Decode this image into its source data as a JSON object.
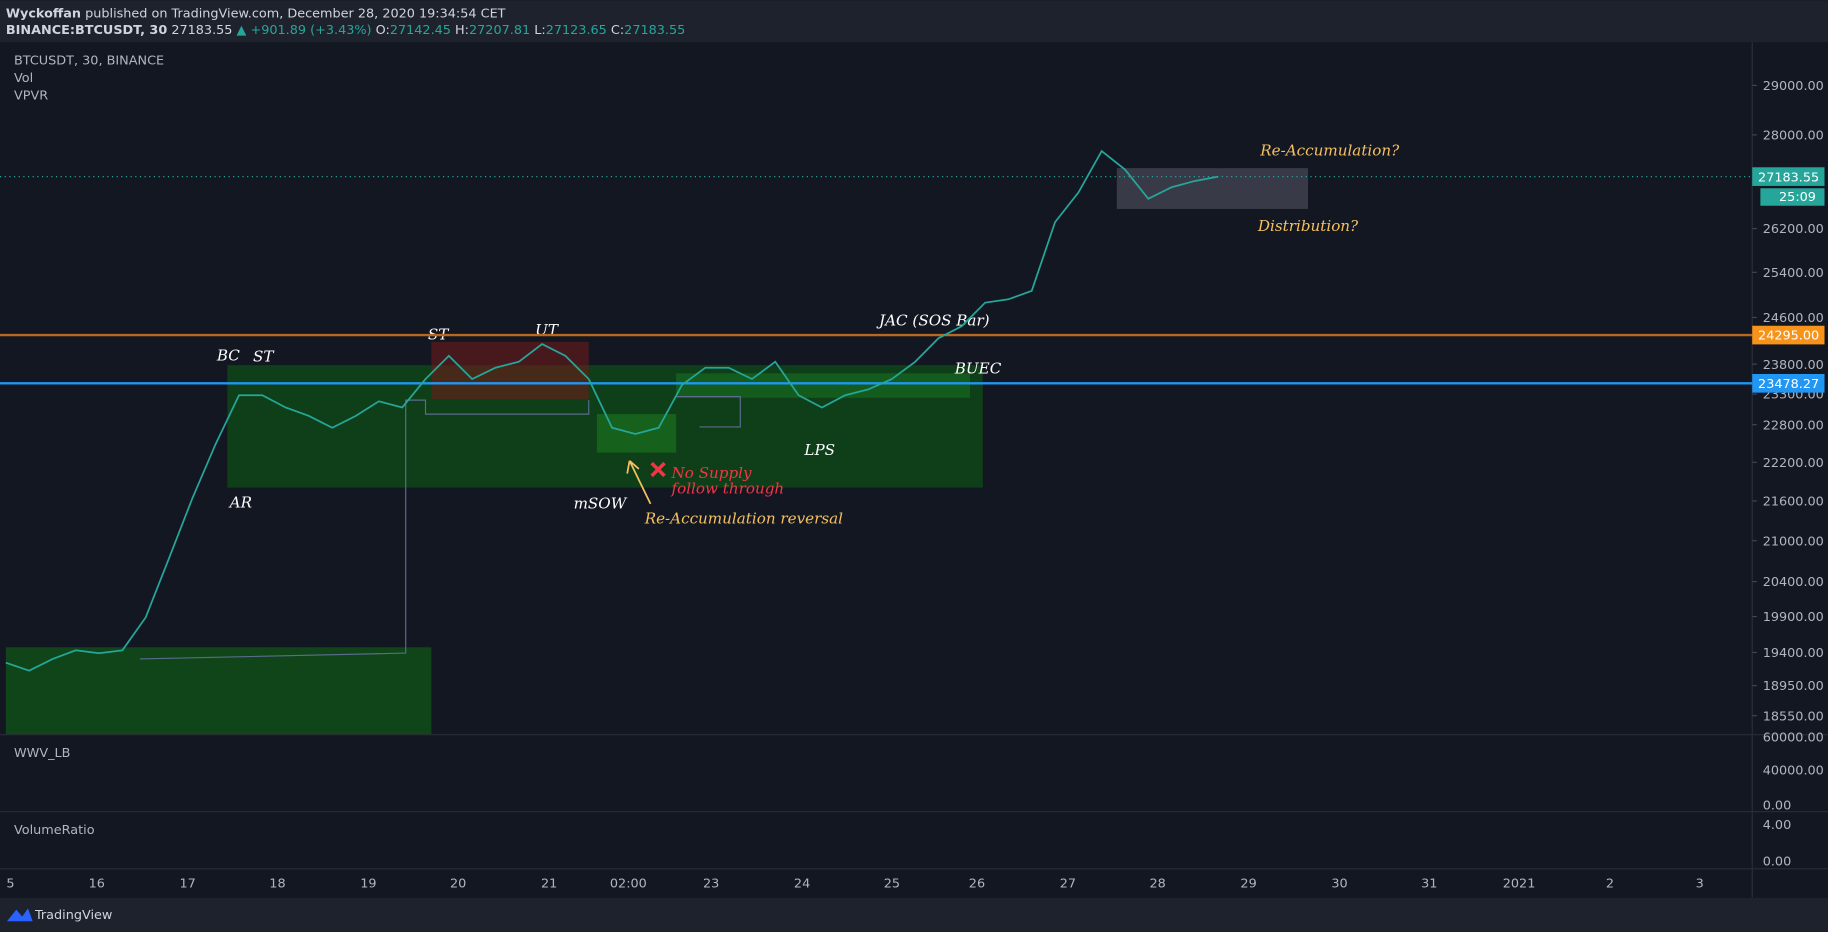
{
  "header": {
    "author": "Wyckoffan",
    "published": "published on TradingView.com, December 28, 2020 19:34:54 CET",
    "symbol": "BINANCE:BTCUSDT, 30",
    "last": "27183.55",
    "change": "▲ +901.89 (+3.43%)",
    "ohlc": [
      {
        "k": "O:",
        "v": "27142.45"
      },
      {
        "k": "H:",
        "v": "27207.81"
      },
      {
        "k": "L:",
        "v": "27123.65"
      },
      {
        "k": "C:",
        "v": "27183.55"
      }
    ]
  },
  "legend": [
    "BTCUSDT, 30, BINANCE",
    "Vol",
    "VPVR"
  ],
  "price_axis": {
    "labels": [
      "29000.00",
      "28000.00",
      "26200.00",
      "25400.00",
      "24600.00",
      "23800.00",
      "23300.00",
      "22800.00",
      "22200.00",
      "21600.00",
      "21000.00",
      "20400.00",
      "19900.00",
      "19400.00",
      "18950.00",
      "18550.00"
    ],
    "last_price": "27183.55",
    "countdown": "25:09",
    "resistance": "24295.00",
    "support": "23478.27"
  },
  "price_series": {
    "name": "BTCUSDT close",
    "values": [
      19260,
      19150,
      19310,
      19430,
      19390,
      19430,
      19890,
      20740,
      21640,
      22490,
      23280,
      23280,
      23080,
      22940,
      22750,
      22940,
      23180,
      23080,
      23550,
      23940,
      23550,
      23740,
      23840,
      24140,
      23940,
      23550,
      22750,
      22650,
      22750,
      23450,
      23740,
      23740,
      23550,
      23840,
      23280,
      23080,
      23280,
      23380,
      23550,
      23840,
      24240,
      24450,
      24860,
      24920,
      25070,
      26320,
      26880,
      27680,
      27320,
      26760,
      26980,
      27100,
      27183.55
    ]
  },
  "annotations": {
    "bc": "BC",
    "st1": "ST",
    "ar": "AR",
    "st2": "ST",
    "ut": "UT",
    "msow": "mSOW",
    "no_supply_1": "No Supply",
    "no_supply_2": "follow through",
    "reversal": "Re-Accumulation reversal",
    "lps": "LPS",
    "jac": "JAC (SOS Bar)",
    "buec": "BUEC",
    "reacc": "Re-Accumulation?",
    "distribution": "Distribution?"
  },
  "panes": {
    "wwv": {
      "title": "WWV_LB",
      "labels": [
        "60000.00",
        "40000.00",
        "0.00"
      ]
    },
    "vr": {
      "title": "VolumeRatio",
      "labels": [
        "4.00",
        "0.00"
      ]
    }
  },
  "time_axis": [
    "5",
    "16",
    "17",
    "18",
    "19",
    "20",
    "21",
    "02:00",
    "23",
    "24",
    "25",
    "26",
    "27",
    "28",
    "29",
    "30",
    "31",
    "2021",
    "2",
    "3"
  ],
  "footer": {
    "brand": "TradingView"
  }
}
